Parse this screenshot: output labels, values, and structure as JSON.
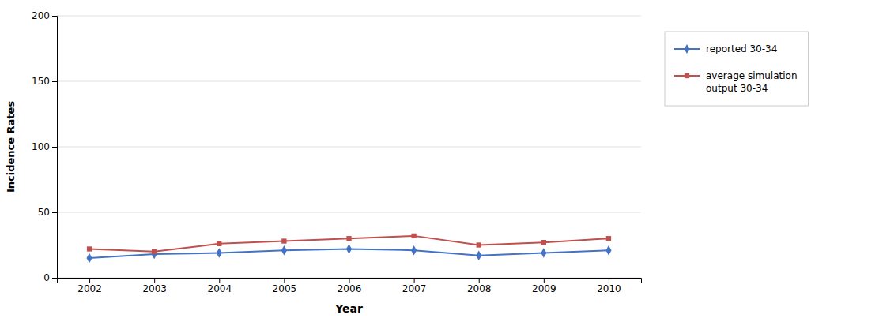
{
  "chart_data": {
    "type": "line",
    "x": [
      2002,
      2003,
      2004,
      2005,
      2006,
      2007,
      2008,
      2009,
      2010
    ],
    "series": [
      {
        "name": "reported 30-34",
        "color": "#4472C4",
        "marker": "diamond",
        "values": [
          15,
          18,
          19,
          21,
          22,
          21,
          17,
          19,
          21
        ]
      },
      {
        "name": "average simulation\noutput 30-34",
        "color": "#C0504D",
        "marker": "square",
        "values": [
          22,
          20,
          26,
          28,
          30,
          32,
          25,
          27,
          30
        ]
      }
    ],
    "xlim": [
      2001.5,
      2010.5
    ],
    "xticks": [
      2002,
      2003,
      2004,
      2005,
      2006,
      2007,
      2008,
      2009,
      2010
    ],
    "ylim": [
      0,
      200
    ],
    "yticks": [
      0,
      50,
      100,
      150,
      200
    ],
    "xlabel": "Year",
    "ylabel": "Incidence Rates",
    "grid": true,
    "legend": "right"
  }
}
